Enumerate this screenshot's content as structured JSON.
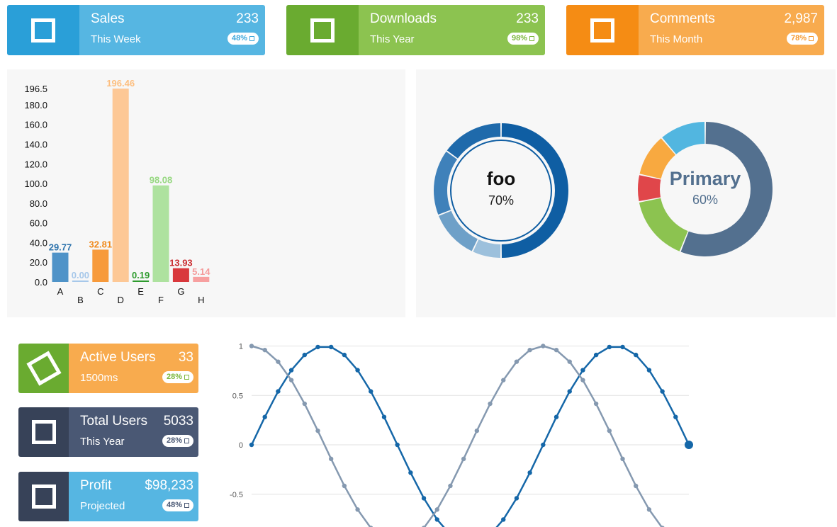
{
  "top_cards": [
    {
      "title": "Sales",
      "value": "233",
      "sub": "This Week",
      "badge": "48%",
      "icon": "square-icon",
      "icon_color": "#2a9fd8",
      "body_color": "#56b6e2",
      "badge_text_color": "#3ea8dc"
    },
    {
      "title": "Downloads",
      "value": "233",
      "sub": "This Year",
      "badge": "98%",
      "icon": "square-icon",
      "icon_color": "#6aab30",
      "body_color": "#8cc350",
      "badge_text_color": "#7db83e"
    },
    {
      "title": "Comments",
      "value": "2,987",
      "sub": "This Month",
      "badge": "78%",
      "icon": "square-icon",
      "icon_color": "#f58c14",
      "body_color": "#f8ab4e",
      "badge_text_color": "#f59a30"
    }
  ],
  "side_cards": [
    {
      "title": "Active Users",
      "value": "33",
      "sub": "1500ms",
      "badge": "28%",
      "icon": "rotated-square-icon",
      "icon_color": "#6aab30",
      "body_color": "#f8ab4e",
      "badge_text_color": "#7db83e"
    },
    {
      "title": "Total Users",
      "value": "5033",
      "sub": "This Year",
      "badge": "28%",
      "icon": "square-icon",
      "icon_color": "#374258",
      "body_color": "#4a5874",
      "badge_text_color": "#4a5874"
    },
    {
      "title": "Profit",
      "value": "$98,233",
      "sub": "Projected",
      "badge": "48%",
      "icon": "square-icon",
      "icon_color": "#374258",
      "body_color": "#56b6e2",
      "badge_text_color": "#4a5874"
    }
  ],
  "chart_data": [
    {
      "type": "bar",
      "categories": [
        "A",
        "B",
        "C",
        "D",
        "E",
        "F",
        "G",
        "H"
      ],
      "values": [
        29.77,
        0.0,
        32.81,
        196.46,
        0.19,
        98.08,
        13.93,
        5.14
      ],
      "value_labels": [
        "29.77",
        "0.00",
        "32.81",
        "196.46",
        "0.19",
        "98.08",
        "13.93",
        "5.14"
      ],
      "bar_colors": [
        "#4f93c8",
        "#a7c8ea",
        "#f79a3b",
        "#fdc896",
        "#2e9b2e",
        "#aee29f",
        "#d9383c",
        "#f7a0a0"
      ],
      "label_colors": [
        "#2f74ad",
        "#a7c8ea",
        "#f08a1c",
        "#fdbf80",
        "#2e9b2e",
        "#96d880",
        "#c92a2e",
        "#f59a9a"
      ],
      "yticks": [
        "0.0",
        "20.0",
        "40.0",
        "60.0",
        "80.0",
        "100.0",
        "120.0",
        "140.0",
        "160.0",
        "180.0",
        "196.5"
      ],
      "ylim": [
        0,
        196.5
      ]
    },
    {
      "type": "pie",
      "title": "foo",
      "subtitle": "70%",
      "slices": [
        {
          "value": 50,
          "color": "#0f5ea3"
        },
        {
          "value": 7,
          "color": "#9cc0dc"
        },
        {
          "value": 12,
          "color": "#6ea0c8"
        },
        {
          "value": 16,
          "color": "#3f81ba"
        },
        {
          "value": 15,
          "color": "#1f6aab"
        }
      ],
      "title_color": "#111111",
      "subtitle_color": "#222222"
    },
    {
      "type": "pie",
      "title": "Primary",
      "subtitle": "60%",
      "slices": [
        {
          "value": 60,
          "color": "#53708f"
        },
        {
          "value": 17,
          "color": "#8cc350"
        },
        {
          "value": 7,
          "color": "#e0464a"
        },
        {
          "value": 11,
          "color": "#f8a940"
        },
        {
          "value": 12,
          "color": "#52b6e0"
        }
      ],
      "title_color": "#53708f",
      "subtitle_color": "#53708f"
    },
    {
      "type": "line",
      "yticks": [
        "1",
        "0.5",
        "0",
        "-0.5"
      ],
      "ylim": [
        -0.83,
        1
      ],
      "series": [
        {
          "name": "sine",
          "color": "#1567a8",
          "function": "sin"
        },
        {
          "name": "cosine",
          "color": "#8599b0",
          "function": "cos"
        }
      ]
    }
  ]
}
